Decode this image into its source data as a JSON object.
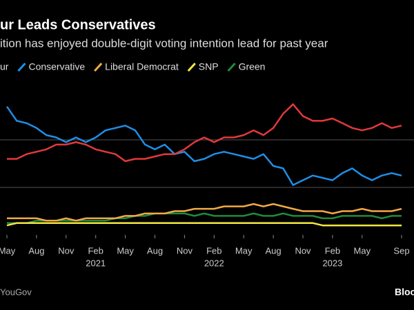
{
  "chart_data": {
    "type": "line",
    "title": "ur Leads Conservatives",
    "subtitle": "ition has enjoyed double-digit voting intention lead for past year",
    "source": "YouGov",
    "brand": "Bloo",
    "x": [
      "2020-05",
      "2020-06",
      "2020-07",
      "2020-08",
      "2020-09",
      "2020-10",
      "2020-11",
      "2020-12",
      "2021-01",
      "2021-02",
      "2021-03",
      "2021-04",
      "2021-05",
      "2021-06",
      "2021-07",
      "2021-08",
      "2021-09",
      "2021-10",
      "2021-11",
      "2021-12",
      "2022-01",
      "2022-02",
      "2022-03",
      "2022-04",
      "2022-05",
      "2022-06",
      "2022-07",
      "2022-08",
      "2022-09",
      "2022-10",
      "2022-11",
      "2022-12",
      "2023-01",
      "2023-02",
      "2023-03",
      "2023-04",
      "2023-05",
      "2023-06",
      "2023-07",
      "2023-08",
      "2023-09"
    ],
    "xticks": [
      {
        "value": "2020-05",
        "label": "May"
      },
      {
        "value": "2020-08",
        "label": "Aug"
      },
      {
        "value": "2020-11",
        "label": "Nov"
      },
      {
        "value": "2021-02",
        "label": "Feb"
      },
      {
        "value": "2021-05",
        "label": "May"
      },
      {
        "value": "2021-08",
        "label": "Aug"
      },
      {
        "value": "2021-11",
        "label": "Nov"
      },
      {
        "value": "2022-02",
        "label": "Feb"
      },
      {
        "value": "2022-05",
        "label": "May"
      },
      {
        "value": "2022-08",
        "label": "Aug"
      },
      {
        "value": "2022-11",
        "label": "Nov"
      },
      {
        "value": "2023-02",
        "label": "Feb"
      },
      {
        "value": "2023-05",
        "label": "May"
      },
      {
        "value": "2023-09",
        "label": "Sep"
      }
    ],
    "year_labels": [
      {
        "value": "2021-02",
        "label": "2021"
      },
      {
        "value": "2022-02",
        "label": "2022"
      },
      {
        "value": "2023-02",
        "label": "2023"
      }
    ],
    "ylim": [
      0,
      60
    ],
    "yticks": [
      20,
      40
    ],
    "grid": true,
    "series": [
      {
        "name": "ur",
        "color": "#e2393c",
        "values": [
          32,
          32,
          34,
          35,
          36,
          38,
          38,
          39,
          38,
          36,
          35,
          34,
          31,
          32,
          32,
          33,
          34,
          34,
          36,
          39,
          41,
          39,
          41,
          41,
          42,
          44,
          42,
          45,
          51,
          55,
          50,
          48,
          48,
          49,
          47,
          45,
          44,
          45,
          47,
          45,
          46
        ]
      },
      {
        "name": "Conservative",
        "color": "#1f8fe6",
        "values": [
          54,
          48,
          47,
          45,
          42,
          41,
          39,
          41,
          39,
          41,
          44,
          45,
          46,
          44,
          38,
          36,
          38,
          34,
          35,
          31,
          32,
          34,
          35,
          34,
          33,
          32,
          34,
          29,
          28,
          21,
          23,
          25,
          24,
          23,
          26,
          28,
          25,
          23,
          25,
          26,
          25
        ]
      },
      {
        "name": "Liberal Democrat",
        "color": "#f2a946",
        "values": [
          7,
          7,
          7,
          7,
          6,
          6,
          7,
          6,
          7,
          7,
          7,
          7,
          8,
          8,
          9,
          9,
          9,
          10,
          10,
          11,
          11,
          11,
          12,
          12,
          12,
          13,
          12,
          13,
          12,
          11,
          10,
          10,
          10,
          9,
          10,
          10,
          11,
          10,
          10,
          10,
          11
        ]
      },
      {
        "name": "SNP",
        "color": "#f4e842",
        "values": [
          4,
          5,
          5,
          5,
          5,
          5,
          5,
          5,
          5,
          5,
          5,
          5,
          5,
          5,
          5,
          5,
          5,
          5,
          5,
          5,
          5,
          5,
          5,
          5,
          5,
          5,
          5,
          5,
          5,
          5,
          5,
          5,
          4,
          4,
          4,
          4,
          4,
          4,
          4,
          4,
          4
        ]
      },
      {
        "name": "Green",
        "color": "#1f8b3d",
        "values": [
          5,
          5,
          5,
          6,
          6,
          6,
          6,
          6,
          6,
          6,
          6,
          7,
          7,
          8,
          8,
          9,
          9,
          9,
          9,
          8,
          9,
          8,
          8,
          8,
          8,
          9,
          8,
          8,
          9,
          8,
          8,
          8,
          7,
          7,
          8,
          8,
          8,
          8,
          7,
          8,
          8
        ]
      }
    ]
  }
}
